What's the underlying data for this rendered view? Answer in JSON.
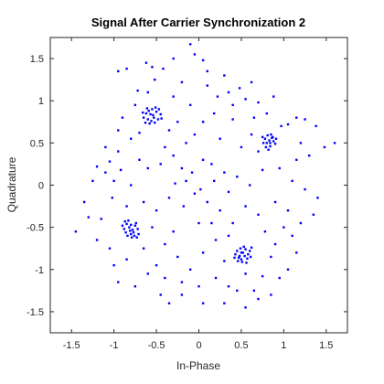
{
  "chart_data": {
    "type": "scatter",
    "title": "Signal After Carrier Synchronization 2",
    "xlabel": "In-Phase",
    "ylabel": "Quadrature",
    "xlim": [
      -1.75,
      1.75
    ],
    "ylim": [
      -1.75,
      1.75
    ],
    "xticks": [
      -1.5,
      -1,
      -0.5,
      0,
      0.5,
      1,
      1.5
    ],
    "xtick_labels": [
      "-1.5",
      "-1",
      "-0.5",
      "0",
      "0.5",
      "1",
      "1.5"
    ],
    "yticks": [
      -1.5,
      -1,
      -0.5,
      0,
      0.5,
      1,
      1.5
    ],
    "ytick_labels": [
      "-1.5",
      "-1",
      "-0.5",
      "0",
      "0.5",
      "1",
      "1.5"
    ],
    "grid": false,
    "marker_color": "#0000ff",
    "series": [
      {
        "points": [
          [
            -0.57,
            0.84
          ],
          [
            -0.53,
            0.8
          ],
          [
            -0.6,
            0.78
          ],
          [
            -0.5,
            0.87
          ],
          [
            -0.55,
            0.9
          ],
          [
            -0.62,
            0.85
          ],
          [
            -0.48,
            0.78
          ],
          [
            -0.58,
            0.73
          ],
          [
            -0.52,
            0.74
          ],
          [
            -0.65,
            0.8
          ],
          [
            -0.45,
            0.84
          ],
          [
            -0.54,
            0.83
          ],
          [
            -0.59,
            0.88
          ],
          [
            -0.51,
            0.92
          ],
          [
            -0.56,
            0.76
          ],
          [
            -0.63,
            0.74
          ],
          [
            -0.47,
            0.9
          ],
          [
            -0.61,
            0.91
          ],
          [
            -0.44,
            0.79
          ],
          [
            -0.66,
            0.86
          ],
          [
            -0.82,
            -0.5
          ],
          [
            -0.78,
            -0.53
          ],
          [
            -0.85,
            -0.46
          ],
          [
            -0.8,
            -0.58
          ],
          [
            -0.75,
            -0.48
          ],
          [
            -0.88,
            -0.52
          ],
          [
            -0.83,
            -0.42
          ],
          [
            -0.77,
            -0.56
          ],
          [
            -0.72,
            -0.52
          ],
          [
            -0.86,
            -0.56
          ],
          [
            -0.8,
            -0.47
          ],
          [
            -0.84,
            -0.6
          ],
          [
            -0.74,
            -0.45
          ],
          [
            -0.9,
            -0.48
          ],
          [
            -0.79,
            -0.62
          ],
          [
            -0.71,
            -0.58
          ],
          [
            -0.87,
            -0.43
          ],
          [
            -0.81,
            -0.54
          ],
          [
            -0.76,
            -0.6
          ],
          [
            -0.73,
            -0.62
          ],
          [
            0.52,
            -0.8
          ],
          [
            0.48,
            -0.84
          ],
          [
            0.55,
            -0.76
          ],
          [
            0.5,
            -0.88
          ],
          [
            0.58,
            -0.82
          ],
          [
            0.45,
            -0.78
          ],
          [
            0.53,
            -0.73
          ],
          [
            0.47,
            -0.86
          ],
          [
            0.57,
            -0.87
          ],
          [
            0.51,
            -0.91
          ],
          [
            0.43,
            -0.82
          ],
          [
            0.6,
            -0.78
          ],
          [
            0.54,
            -0.84
          ],
          [
            0.49,
            -0.75
          ],
          [
            0.56,
            -0.92
          ],
          [
            0.46,
            -0.9
          ],
          [
            0.61,
            -0.85
          ],
          [
            0.42,
            -0.86
          ],
          [
            0.5,
            -0.8
          ],
          [
            0.62,
            -0.74
          ],
          [
            0.83,
            0.53
          ],
          [
            0.8,
            0.5
          ],
          [
            0.86,
            0.56
          ],
          [
            0.78,
            0.55
          ],
          [
            0.84,
            0.46
          ],
          [
            0.88,
            0.52
          ],
          [
            0.81,
            0.59
          ],
          [
            0.76,
            0.5
          ],
          [
            0.85,
            0.6
          ],
          [
            0.9,
            0.49
          ],
          [
            0.79,
            0.45
          ],
          [
            0.87,
            0.57
          ],
          [
            0.82,
            0.42
          ],
          [
            0.75,
            0.57
          ],
          [
            0.91,
            0.55
          ],
          [
            0.84,
            0.5
          ],
          [
            -0.1,
            1.67
          ],
          [
            -0.05,
            1.55
          ],
          [
            0.05,
            1.48
          ],
          [
            -0.3,
            1.5
          ],
          [
            -0.55,
            1.4
          ],
          [
            -0.62,
            1.45
          ],
          [
            -0.42,
            1.38
          ],
          [
            -0.85,
            1.38
          ],
          [
            -0.95,
            1.35
          ],
          [
            -0.52,
            1.25
          ],
          [
            -0.72,
            1.12
          ],
          [
            -0.2,
            1.22
          ],
          [
            0.1,
            1.18
          ],
          [
            0.22,
            1.05
          ],
          [
            0.35,
            1.1
          ],
          [
            0.48,
            1.15
          ],
          [
            0.55,
            1.02
          ],
          [
            0.62,
            1.22
          ],
          [
            0.7,
            0.98
          ],
          [
            0.88,
            1.05
          ],
          [
            1.05,
            0.72
          ],
          [
            1.15,
            0.8
          ],
          [
            1.25,
            0.78
          ],
          [
            1.38,
            0.7
          ],
          [
            1.48,
            0.45
          ],
          [
            1.6,
            0.5
          ],
          [
            0.97,
            0.7
          ],
          [
            0.65,
            0.8
          ],
          [
            0.4,
            0.78
          ],
          [
            0.18,
            0.85
          ],
          [
            -0.05,
            0.6
          ],
          [
            -0.15,
            0.5
          ],
          [
            -0.35,
            0.65
          ],
          [
            -0.8,
            0.55
          ],
          [
            -0.95,
            0.4
          ],
          [
            -1.05,
            0.28
          ],
          [
            -1.2,
            0.22
          ],
          [
            -1.1,
            0.15
          ],
          [
            -1.0,
            0.05
          ],
          [
            -0.92,
            0.18
          ],
          [
            -0.7,
            0.3
          ],
          [
            -0.6,
            0.2
          ],
          [
            -0.45,
            0.25
          ],
          [
            -0.3,
            0.35
          ],
          [
            -0.2,
            0.2
          ],
          [
            -0.08,
            0.15
          ],
          [
            0.05,
            0.3
          ],
          [
            0.15,
            0.25
          ],
          [
            0.3,
            0.15
          ],
          [
            0.45,
            0.1
          ],
          [
            0.6,
            0.0
          ],
          [
            0.75,
            0.18
          ],
          [
            0.95,
            0.2
          ],
          [
            1.1,
            0.05
          ],
          [
            1.25,
            -0.05
          ],
          [
            1.4,
            -0.15
          ],
          [
            1.05,
            -0.3
          ],
          [
            0.9,
            -0.2
          ],
          [
            0.7,
            -0.35
          ],
          [
            0.55,
            -0.25
          ],
          [
            0.4,
            -0.45
          ],
          [
            0.25,
            -0.3
          ],
          [
            0.1,
            -0.2
          ],
          [
            -0.05,
            -0.1
          ],
          [
            -0.18,
            -0.25
          ],
          [
            -0.35,
            -0.15
          ],
          [
            -0.5,
            -0.3
          ],
          [
            -0.65,
            -0.2
          ],
          [
            -0.85,
            -0.25
          ],
          [
            -1.02,
            -0.15
          ],
          [
            -1.15,
            -0.4
          ],
          [
            -1.3,
            -0.38
          ],
          [
            -1.45,
            -0.55
          ],
          [
            -1.05,
            -0.75
          ],
          [
            -1.0,
            -0.95
          ],
          [
            -0.85,
            -0.88
          ],
          [
            -0.65,
            -0.75
          ],
          [
            -0.5,
            -0.95
          ],
          [
            -0.4,
            -0.7
          ],
          [
            -0.25,
            -0.85
          ],
          [
            -0.1,
            -1.0
          ],
          [
            0.05,
            -0.8
          ],
          [
            0.2,
            -0.65
          ],
          [
            0.3,
            -0.9
          ],
          [
            0.2,
            -1.1
          ],
          [
            0.0,
            -1.2
          ],
          [
            -0.2,
            -1.15
          ],
          [
            -0.4,
            -1.1
          ],
          [
            -0.6,
            -1.05
          ],
          [
            0.35,
            -1.2
          ],
          [
            0.55,
            -1.05
          ],
          [
            0.75,
            -1.08
          ],
          [
            0.85,
            -1.3
          ],
          [
            0.95,
            -1.1
          ],
          [
            0.9,
            -0.7
          ],
          [
            1.1,
            -0.6
          ],
          [
            1.2,
            -0.45
          ],
          [
            1.0,
            -0.5
          ],
          [
            0.78,
            -0.55
          ],
          [
            0.55,
            -1.45
          ],
          [
            0.7,
            -1.35
          ],
          [
            0.3,
            -1.4
          ],
          [
            0.05,
            -1.4
          ],
          [
            -0.2,
            -1.3
          ],
          [
            -0.35,
            -1.4
          ],
          [
            -0.15,
            0.05
          ],
          [
            0.02,
            -0.05
          ],
          [
            0.18,
            0.05
          ],
          [
            -0.28,
            0.02
          ],
          [
            0.35,
            -0.08
          ],
          [
            -0.4,
            0.45
          ],
          [
            0.25,
            0.55
          ],
          [
            0.05,
            0.75
          ],
          [
            -0.1,
            0.95
          ],
          [
            -0.3,
            1.05
          ],
          [
            0.1,
            1.35
          ],
          [
            0.3,
            1.3
          ],
          [
            -0.75,
            0.95
          ],
          [
            -0.9,
            0.8
          ],
          [
            0.5,
            0.45
          ],
          [
            0.62,
            0.6
          ],
          [
            0.7,
            0.4
          ],
          [
            -0.7,
            0.62
          ],
          [
            -0.8,
            0.0
          ],
          [
            -0.55,
            -0.5
          ],
          [
            -0.3,
            -0.55
          ],
          [
            0.0,
            -0.45
          ],
          [
            0.35,
            -0.6
          ],
          [
            0.15,
            -0.45
          ],
          [
            0.85,
            -0.85
          ],
          [
            1.2,
            0.5
          ],
          [
            1.3,
            0.35
          ],
          [
            1.15,
            0.3
          ],
          [
            -1.25,
            0.05
          ],
          [
            -1.35,
            -0.2
          ],
          [
            -1.2,
            -0.65
          ],
          [
            -0.95,
            -1.15
          ],
          [
            -0.75,
            -1.2
          ],
          [
            -0.45,
            -1.3
          ],
          [
            0.45,
            -1.25
          ],
          [
            0.65,
            -1.25
          ],
          [
            1.05,
            -1.0
          ],
          [
            1.15,
            -0.8
          ],
          [
            -0.25,
            0.75
          ],
          [
            0.4,
            0.95
          ],
          [
            -0.6,
            1.1
          ],
          [
            0.8,
            0.85
          ],
          [
            -0.95,
            0.65
          ],
          [
            1.35,
            -0.35
          ],
          [
            -1.1,
            0.45
          ]
        ]
      }
    ]
  }
}
